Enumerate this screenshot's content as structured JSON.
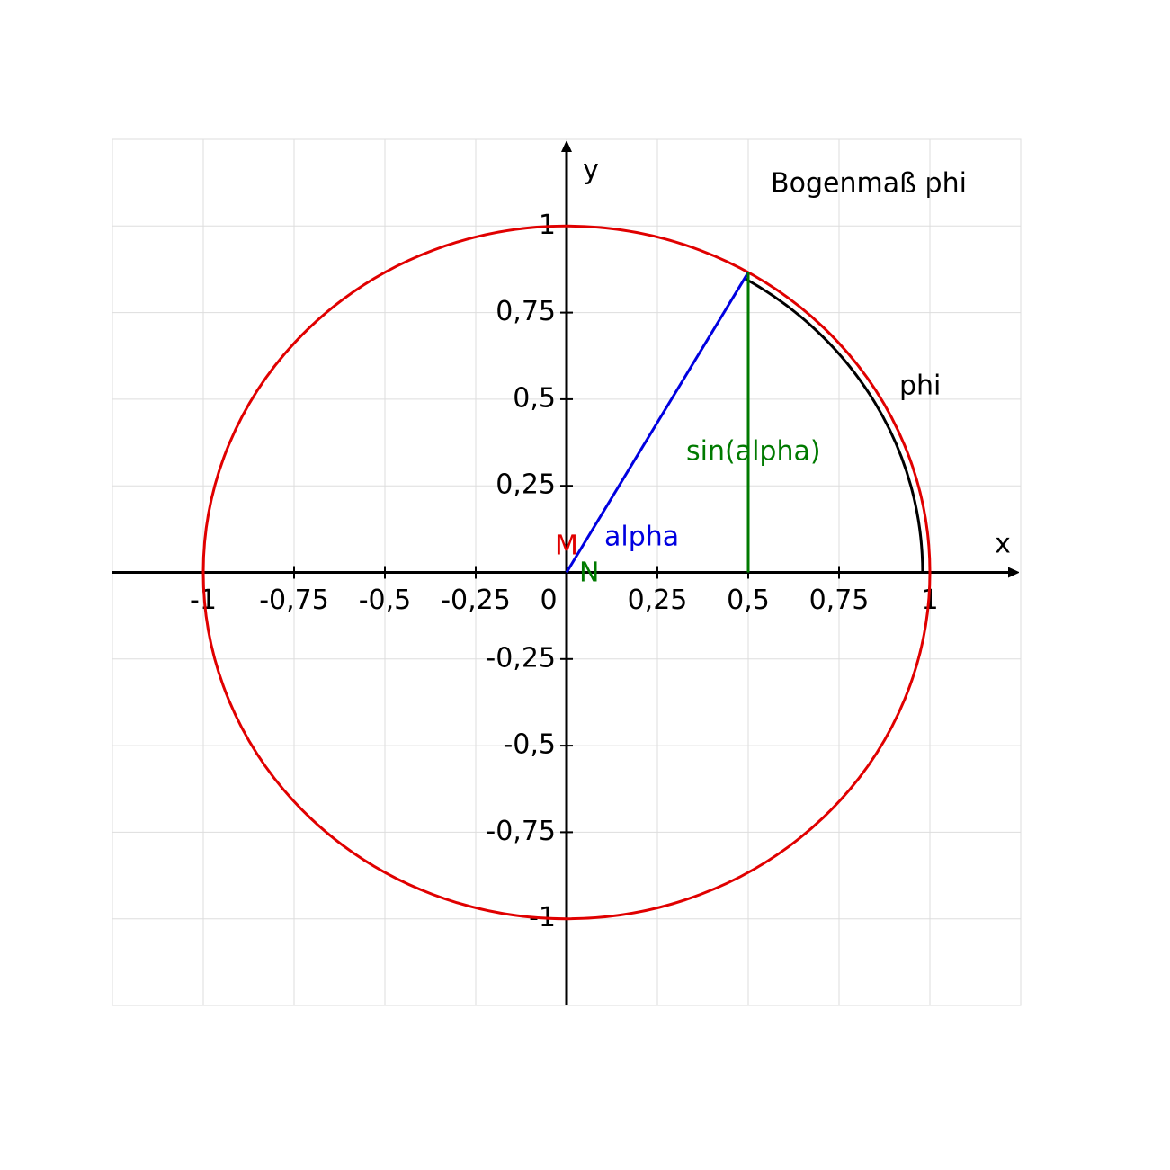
{
  "title": "Bogenmaß phi",
  "axes": {
    "x_label": "x",
    "y_label": "y",
    "xlim": [
      -1.25,
      1.25
    ],
    "ylim": [
      -1.25,
      1.25
    ],
    "xticks": [
      -1,
      {
        "value": -0.75,
        "label": "-0,75"
      },
      {
        "value": -0.5,
        "label": "-0,5"
      },
      {
        "value": -0.25,
        "label": "-0,25"
      },
      0,
      {
        "value": 0.25,
        "label": "0,25"
      },
      {
        "value": 0.5,
        "label": "0,5"
      },
      {
        "value": 0.75,
        "label": "0,75"
      },
      1
    ],
    "yticks": [
      -1,
      {
        "value": -0.75,
        "label": "-0,75"
      },
      {
        "value": -0.5,
        "label": "-0,5"
      },
      {
        "value": -0.25,
        "label": "-0,25"
      },
      {
        "value": 0.25,
        "label": "0,25"
      },
      {
        "value": 0.5,
        "label": "0,5"
      },
      {
        "value": 0.75,
        "label": "0,75"
      },
      1
    ]
  },
  "circle": {
    "radius": 1,
    "color": "#e00000"
  },
  "point": [
    0.5,
    0.866
  ],
  "phi_arc": {
    "radius": 0.98,
    "angle": 60
  },
  "labels": {
    "M": "M",
    "N": "N",
    "alpha": "alpha",
    "sin": "sin(alpha)",
    "phi": "phi"
  }
}
